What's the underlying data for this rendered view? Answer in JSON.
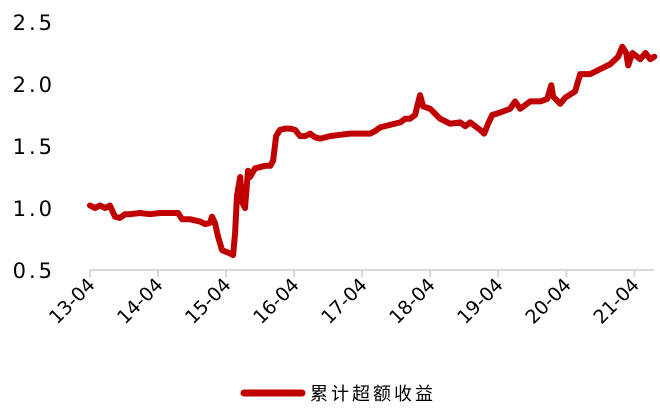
{
  "chart_data": {
    "type": "line",
    "title": "",
    "xlabel": "",
    "ylabel": "",
    "ylim": [
      0.5,
      2.5
    ],
    "xlim": [
      "2013-04-01",
      "2021-07-17"
    ],
    "grid": false,
    "legend_position": "bottom",
    "y_ticks": [
      "0.5",
      "1.0",
      "1.5",
      "2.0",
      "2.5"
    ],
    "x_ticks": [
      {
        "date": "2013-04-01",
        "label": "13-04"
      },
      {
        "date": "2014-04-01",
        "label": "14-04"
      },
      {
        "date": "2015-04-01",
        "label": "15-04"
      },
      {
        "date": "2016-04-01",
        "label": "16-04"
      },
      {
        "date": "2017-04-01",
        "label": "17-04"
      },
      {
        "date": "2018-04-01",
        "label": "18-04"
      },
      {
        "date": "2019-04-01",
        "label": "19-04"
      },
      {
        "date": "2020-04-01",
        "label": "20-04"
      },
      {
        "date": "2021-04-01",
        "label": "21-04"
      }
    ],
    "series": [
      {
        "name": "累计超额收益",
        "color": "#c00000",
        "x": [
          "2013-04-01",
          "2013-04-28",
          "2013-05-25",
          "2013-06-21",
          "2013-07-17",
          "2013-08-13",
          "2013-09-09",
          "2013-10-06",
          "2013-11-02",
          "2013-12-25",
          "2014-02-17",
          "2014-04-12",
          "2014-06-05",
          "2014-07-18",
          "2014-08-08",
          "2014-09-20",
          "2014-10-17",
          "2014-11-13",
          "2014-12-10",
          "2015-01-05",
          "2015-01-16",
          "2015-02-01",
          "2015-02-17",
          "2015-03-11",
          "2015-04-12",
          "2015-05-09",
          "2015-05-20",
          "2015-05-30",
          "2015-06-16",
          "2015-06-26",
          "2015-07-12",
          "2015-07-28",
          "2015-08-08",
          "2015-09-04",
          "2015-10-01",
          "2015-10-28",
          "2015-11-24",
          "2015-12-10",
          "2015-12-26",
          "2016-01-16",
          "2016-02-12",
          "2016-03-10",
          "2016-04-06",
          "2016-05-03",
          "2016-05-30",
          "2016-06-25",
          "2016-07-22",
          "2016-08-18",
          "2016-10-11",
          "2016-12-04",
          "2017-01-26",
          "2017-03-21",
          "2017-05-14",
          "2017-06-09",
          "2017-07-06",
          "2017-08-29",
          "2017-10-22",
          "2017-11-18",
          "2017-12-14",
          "2018-01-10",
          "2018-01-26",
          "2018-02-06",
          "2018-02-22",
          "2018-04-01",
          "2018-05-24",
          "2018-07-17",
          "2018-09-09",
          "2018-10-06",
          "2018-11-02",
          "2018-12-25",
          "2019-01-16",
          "2019-02-06",
          "2019-02-28",
          "2019-04-12",
          "2019-06-04",
          "2019-07-01",
          "2019-07-28",
          "2019-09-20",
          "2019-11-13",
          "2019-12-20",
          "2020-01-11",
          "2020-01-21",
          "2020-02-28",
          "2020-03-26",
          "2020-05-18",
          "2020-06-14",
          "2020-08-07",
          "2020-09-30",
          "2020-11-22",
          "2021-01-04",
          "2021-01-26",
          "2021-02-16",
          "2021-02-27",
          "2021-03-21",
          "2021-05-03",
          "2021-05-30",
          "2021-06-25",
          "2021-07-17"
        ],
        "values": [
          1.02,
          1.0,
          1.02,
          1.0,
          1.02,
          0.93,
          0.92,
          0.95,
          0.95,
          0.96,
          0.95,
          0.96,
          0.96,
          0.96,
          0.91,
          0.91,
          0.9,
          0.89,
          0.87,
          0.88,
          0.93,
          0.88,
          0.77,
          0.66,
          0.64,
          0.62,
          0.8,
          1.1,
          1.25,
          1.05,
          1.0,
          1.3,
          1.25,
          1.32,
          1.33,
          1.34,
          1.34,
          1.38,
          1.58,
          1.63,
          1.64,
          1.64,
          1.63,
          1.58,
          1.58,
          1.6,
          1.57,
          1.56,
          1.58,
          1.59,
          1.6,
          1.6,
          1.6,
          1.62,
          1.65,
          1.67,
          1.69,
          1.72,
          1.72,
          1.75,
          1.85,
          1.91,
          1.82,
          1.8,
          1.72,
          1.68,
          1.69,
          1.66,
          1.69,
          1.63,
          1.6,
          1.68,
          1.75,
          1.77,
          1.8,
          1.86,
          1.8,
          1.86,
          1.86,
          1.88,
          1.99,
          1.9,
          1.84,
          1.89,
          1.94,
          2.08,
          2.08,
          2.12,
          2.16,
          2.22,
          2.3,
          2.25,
          2.15,
          2.25,
          2.2,
          2.25,
          2.2,
          2.22
        ]
      }
    ]
  }
}
